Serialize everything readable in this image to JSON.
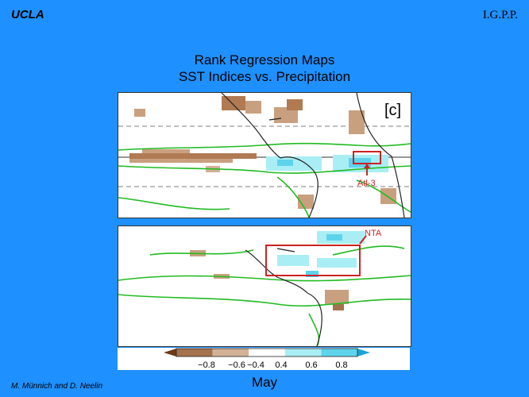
{
  "header": {
    "organization": "UCLA",
    "institute": "I.G.P.P."
  },
  "title": {
    "line1": "Rank Regression Maps",
    "line2": "SST Indices vs. Precipitation"
  },
  "panels": [
    {
      "panel_label": "[c]",
      "index_box_label": "Atl-3"
    },
    {
      "panel_label": "",
      "index_box_label": "NTA"
    }
  ],
  "colorbar": {
    "tick_labels": [
      "−0.8",
      "−0.6",
      "−0.4",
      "0.4",
      "0.6",
      "0.8"
    ],
    "colors": [
      "#6b3a1a",
      "#a5724e",
      "#d2b197",
      "#ffffff",
      "#a9eef4",
      "#5fd3ec",
      "#1aa3d4"
    ]
  },
  "footer": {
    "credits": "M. Münnich and D. Neelin",
    "month": "May"
  },
  "colors": {
    "background": "#1e90ff",
    "contour": "#22bb22",
    "box": "#cc2222"
  }
}
